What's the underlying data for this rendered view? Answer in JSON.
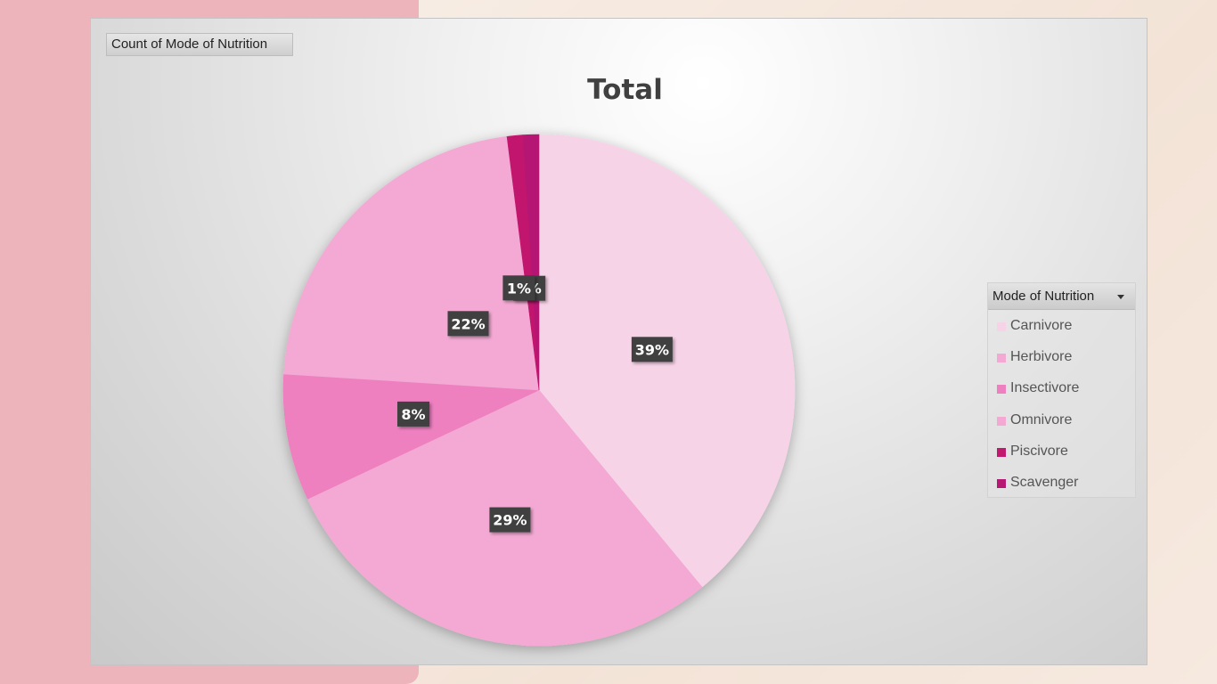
{
  "field_button": {
    "label": "Count of Mode of Nutrition"
  },
  "legend": {
    "title": "Mode of Nutrition"
  },
  "chart_data": {
    "type": "pie",
    "title": "Total",
    "categories": [
      "Carnivore",
      "Herbivore",
      "Insectivore",
      "Omnivore",
      "Piscivore",
      "Scavenger"
    ],
    "values": [
      39,
      29,
      8,
      22,
      1,
      1
    ],
    "labels": [
      "39%",
      "29%",
      "8%",
      "22%",
      "1%",
      "1%"
    ],
    "colors": [
      "#f7d3e8",
      "#f3a9d3",
      "#ee80c0",
      "#f3a9d3",
      "#c2196e",
      "#b61873"
    ],
    "legend_position": "right",
    "start_angle": "12 o'clock, clockwise"
  }
}
